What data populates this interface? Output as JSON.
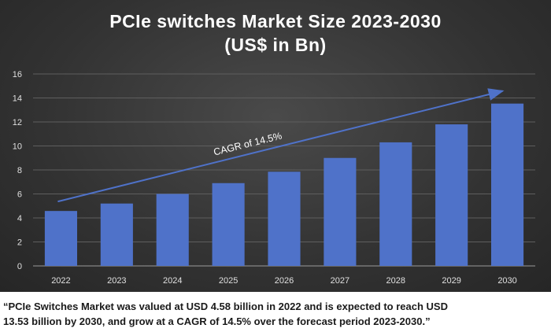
{
  "chart_data": {
    "type": "bar",
    "title": "PCIe switches Market Size 2023-2030",
    "subtitle": "(US$ in Bn)",
    "categories": [
      "2022",
      "2023",
      "2024",
      "2025",
      "2026",
      "2027",
      "2028",
      "2029",
      "2030"
    ],
    "values": [
      4.58,
      5.2,
      6.0,
      6.9,
      7.85,
      9.0,
      10.3,
      11.8,
      13.53
    ],
    "ylim": [
      0,
      16
    ],
    "yticks": [
      "0",
      "2",
      "4",
      "6",
      "8",
      "10",
      "12",
      "14",
      "16"
    ],
    "grid": true,
    "bar_color": "#4f72c9",
    "annotation": "CAGR of 14.5%"
  },
  "caption": {
    "line1": "“PCIe Switches Market was valued at USD 4.58 billion in 2022 and is expected to reach USD",
    "line2": "13.53 billion by 2030, and grow at a CAGR of 14.5% over the forecast period 2023-2030.”"
  }
}
